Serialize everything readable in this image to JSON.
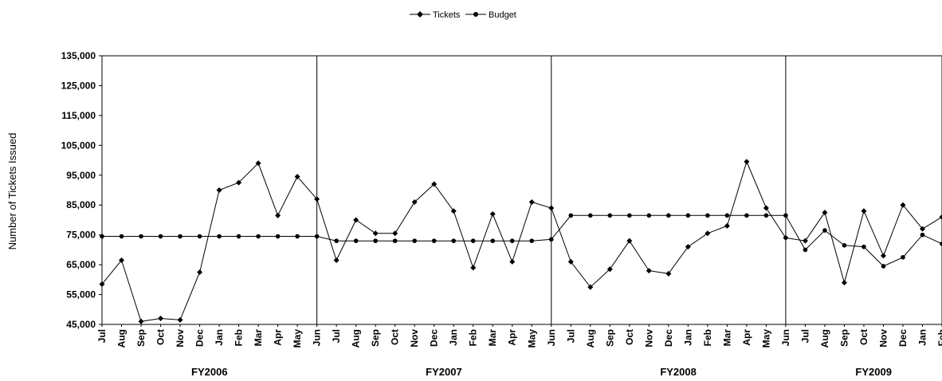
{
  "chart_data": {
    "type": "line",
    "ylabel": "Number of Tickets Issued",
    "ylim": [
      45000,
      135000
    ],
    "y_ticks": [
      "45,000",
      "55,000",
      "65,000",
      "75,000",
      "85,000",
      "95,000",
      "105,000",
      "115,000",
      "125,000",
      "135,000"
    ],
    "categories": [
      "Jul",
      "Aug",
      "Sep",
      "Oct",
      "Nov",
      "Dec",
      "Jan",
      "Feb",
      "Mar",
      "Apr",
      "May",
      "Jun",
      "Jul",
      "Aug",
      "Sep",
      "Oct",
      "Nov",
      "Dec",
      "Jan",
      "Feb",
      "Mar",
      "Apr",
      "May",
      "Jun",
      "Jul",
      "Aug",
      "Sep",
      "Oct",
      "Nov",
      "Dec",
      "Jan",
      "Feb",
      "Mar",
      "Apr",
      "May",
      "Jun",
      "Jul",
      "Aug",
      "Sep",
      "Oct",
      "Nov",
      "Dec",
      "Jan",
      "Feb"
    ],
    "fiscal_years": [
      {
        "label": "FY2006",
        "start": 0,
        "end": 11
      },
      {
        "label": "FY2007",
        "start": 12,
        "end": 23
      },
      {
        "label": "FY2008",
        "start": 24,
        "end": 35
      },
      {
        "label": "FY2009",
        "start": 36,
        "end": 43
      }
    ],
    "legend_position": "top-center",
    "grid": false,
    "series": [
      {
        "name": "Tickets",
        "marker": "diamond",
        "values": [
          58500,
          66500,
          46000,
          47000,
          46500,
          62500,
          90000,
          92500,
          99000,
          81500,
          94500,
          87000,
          66500,
          80000,
          75500,
          75500,
          86000,
          92000,
          83000,
          64000,
          82000,
          66000,
          86000,
          84000,
          66000,
          57500,
          63500,
          73000,
          63000,
          62000,
          71000,
          75500,
          78000,
          99500,
          84000,
          74000,
          73000,
          82500,
          59000,
          83000,
          68000,
          85000,
          77000,
          81000
        ]
      },
      {
        "name": "Budget",
        "marker": "circle",
        "values": [
          74500,
          74500,
          74500,
          74500,
          74500,
          74500,
          74500,
          74500,
          74500,
          74500,
          74500,
          74500,
          73000,
          73000,
          73000,
          73000,
          73000,
          73000,
          73000,
          73000,
          73000,
          73000,
          73000,
          73500,
          81500,
          81500,
          81500,
          81500,
          81500,
          81500,
          81500,
          81500,
          81500,
          81500,
          81500,
          81500,
          70000,
          76500,
          71500,
          71000,
          64500,
          67500,
          75000,
          72000
        ]
      }
    ]
  }
}
